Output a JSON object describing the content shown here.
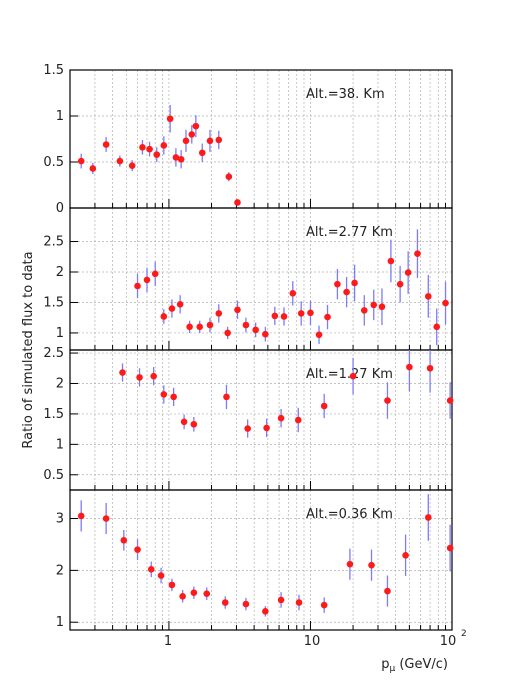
{
  "figure": {
    "ylabel": "Ratio of simulated flux to data",
    "xlabel": "pμ (GeV/c)",
    "xlabel_main": "p",
    "xlabel_sub": "μ",
    "xlabel_rest": " (GeV/c)",
    "x_tick_labels": [
      "1",
      "10",
      "10",
      "2"
    ],
    "x_tick_values": [
      1,
      10,
      100
    ]
  },
  "colors": {
    "marker": "#ff1a1a",
    "error_bar": "#7b7bff",
    "grid": "#b0b0b0",
    "axis": "#000000"
  },
  "chart_data": [
    {
      "type": "scatter",
      "annotation": "Alt.=38. Km",
      "xscale": "log",
      "xlim": [
        0.2,
        100
      ],
      "ylim": [
        0,
        1.5
      ],
      "yticks": [
        0,
        0.5,
        1,
        1.5
      ],
      "ytick_labels": [
        "0",
        "0.5",
        "1",
        "1.5"
      ],
      "grid": true,
      "points": [
        {
          "x": 0.24,
          "y": 0.51,
          "err": 0.08
        },
        {
          "x": 0.29,
          "y": 0.43,
          "err": 0.06
        },
        {
          "x": 0.36,
          "y": 0.69,
          "err": 0.08
        },
        {
          "x": 0.45,
          "y": 0.51,
          "err": 0.06
        },
        {
          "x": 0.55,
          "y": 0.46,
          "err": 0.06
        },
        {
          "x": 0.65,
          "y": 0.66,
          "err": 0.08
        },
        {
          "x": 0.73,
          "y": 0.64,
          "err": 0.08
        },
        {
          "x": 0.82,
          "y": 0.58,
          "err": 0.08
        },
        {
          "x": 0.92,
          "y": 0.68,
          "err": 0.1
        },
        {
          "x": 1.02,
          "y": 0.97,
          "err": 0.15
        },
        {
          "x": 1.12,
          "y": 0.55,
          "err": 0.1
        },
        {
          "x": 1.22,
          "y": 0.53,
          "err": 0.1
        },
        {
          "x": 1.32,
          "y": 0.73,
          "err": 0.12
        },
        {
          "x": 1.45,
          "y": 0.8,
          "err": 0.1
        },
        {
          "x": 1.55,
          "y": 0.89,
          "err": 0.12
        },
        {
          "x": 1.72,
          "y": 0.6,
          "err": 0.1
        },
        {
          "x": 1.95,
          "y": 0.73,
          "err": 0.12
        },
        {
          "x": 2.25,
          "y": 0.74,
          "err": 0.1
        },
        {
          "x": 2.65,
          "y": 0.34,
          "err": 0.05
        },
        {
          "x": 3.05,
          "y": 0.06,
          "err": 0.03
        }
      ]
    },
    {
      "type": "scatter",
      "annotation": "Alt.=2.77 Km",
      "xscale": "log",
      "xlim": [
        0.2,
        100
      ],
      "ylim": [
        0.72,
        3.05
      ],
      "yticks": [
        1,
        1.5,
        2,
        2.5
      ],
      "ytick_labels": [
        "1",
        "1.5",
        "2",
        "2.5"
      ],
      "grid": true,
      "points": [
        {
          "x": 0.6,
          "y": 1.77,
          "err": 0.2
        },
        {
          "x": 0.7,
          "y": 1.87,
          "err": 0.2
        },
        {
          "x": 0.8,
          "y": 1.97,
          "err": 0.2
        },
        {
          "x": 0.92,
          "y": 1.27,
          "err": 0.12
        },
        {
          "x": 1.05,
          "y": 1.4,
          "err": 0.15
        },
        {
          "x": 1.2,
          "y": 1.47,
          "err": 0.15
        },
        {
          "x": 1.4,
          "y": 1.1,
          "err": 0.1
        },
        {
          "x": 1.65,
          "y": 1.1,
          "err": 0.1
        },
        {
          "x": 1.95,
          "y": 1.13,
          "err": 0.12
        },
        {
          "x": 2.25,
          "y": 1.32,
          "err": 0.15
        },
        {
          "x": 2.6,
          "y": 1.0,
          "err": 0.1
        },
        {
          "x": 3.05,
          "y": 1.38,
          "err": 0.15
        },
        {
          "x": 3.5,
          "y": 1.13,
          "err": 0.12
        },
        {
          "x": 4.1,
          "y": 1.05,
          "err": 0.12
        },
        {
          "x": 4.8,
          "y": 0.98,
          "err": 0.12
        },
        {
          "x": 5.6,
          "y": 1.28,
          "err": 0.15
        },
        {
          "x": 6.5,
          "y": 1.27,
          "err": 0.15
        },
        {
          "x": 7.5,
          "y": 1.65,
          "err": 0.2
        },
        {
          "x": 8.6,
          "y": 1.32,
          "err": 0.2
        },
        {
          "x": 10.0,
          "y": 1.33,
          "err": 0.2
        },
        {
          "x": 11.5,
          "y": 0.97,
          "err": 0.15
        },
        {
          "x": 13.2,
          "y": 1.26,
          "err": 0.2
        },
        {
          "x": 15.5,
          "y": 1.8,
          "err": 0.25
        },
        {
          "x": 18.0,
          "y": 1.67,
          "err": 0.25
        },
        {
          "x": 20.5,
          "y": 1.82,
          "err": 0.3
        },
        {
          "x": 24.0,
          "y": 1.37,
          "err": 0.25
        },
        {
          "x": 28.0,
          "y": 1.46,
          "err": 0.25
        },
        {
          "x": 32.0,
          "y": 1.43,
          "err": 0.3
        },
        {
          "x": 37.0,
          "y": 2.18,
          "err": 0.35
        },
        {
          "x": 43.0,
          "y": 1.8,
          "err": 0.3
        },
        {
          "x": 49.0,
          "y": 1.99,
          "err": 0.35
        },
        {
          "x": 57.0,
          "y": 2.3,
          "err": 0.4
        },
        {
          "x": 68.0,
          "y": 1.6,
          "err": 0.35
        },
        {
          "x": 78.0,
          "y": 1.1,
          "err": 0.3
        },
        {
          "x": 90.0,
          "y": 1.49,
          "err": 0.35
        }
      ]
    },
    {
      "type": "scatter",
      "annotation": "Alt.=1.27 Km",
      "xscale": "log",
      "xlim": [
        0.2,
        100
      ],
      "ylim": [
        0.25,
        2.55
      ],
      "yticks": [
        0.5,
        1,
        1.5,
        2,
        2.5
      ],
      "ytick_labels": [
        "0.5",
        "1",
        "1.5",
        "2",
        "2.5"
      ],
      "grid": true,
      "points": [
        {
          "x": 0.47,
          "y": 2.18,
          "err": 0.15
        },
        {
          "x": 0.62,
          "y": 2.1,
          "err": 0.15
        },
        {
          "x": 0.78,
          "y": 2.12,
          "err": 0.15
        },
        {
          "x": 0.92,
          "y": 1.82,
          "err": 0.15
        },
        {
          "x": 1.08,
          "y": 1.78,
          "err": 0.15
        },
        {
          "x": 1.28,
          "y": 1.37,
          "err": 0.12
        },
        {
          "x": 1.5,
          "y": 1.33,
          "err": 0.12
        },
        {
          "x": 2.55,
          "y": 1.78,
          "err": 0.2
        },
        {
          "x": 3.6,
          "y": 1.26,
          "err": 0.15
        },
        {
          "x": 4.9,
          "y": 1.27,
          "err": 0.15
        },
        {
          "x": 6.2,
          "y": 1.43,
          "err": 0.15
        },
        {
          "x": 8.2,
          "y": 1.4,
          "err": 0.2
        },
        {
          "x": 12.5,
          "y": 1.63,
          "err": 0.2
        },
        {
          "x": 20.0,
          "y": 2.12,
          "err": 0.3
        },
        {
          "x": 35.0,
          "y": 1.72,
          "err": 0.3
        },
        {
          "x": 50.0,
          "y": 2.27,
          "err": 0.4
        },
        {
          "x": 70.0,
          "y": 2.25,
          "err": 0.4
        },
        {
          "x": 97.0,
          "y": 1.72,
          "err": 0.3
        }
      ]
    },
    {
      "type": "scatter",
      "annotation": "Alt.=0.36 Km",
      "xscale": "log",
      "xlim": [
        0.2,
        100
      ],
      "ylim": [
        0.85,
        3.55
      ],
      "yticks": [
        1,
        2,
        3
      ],
      "ytick_labels": [
        "1",
        "2",
        "3"
      ],
      "grid": true,
      "points": [
        {
          "x": 0.24,
          "y": 3.05,
          "err": 0.3
        },
        {
          "x": 0.36,
          "y": 3.0,
          "err": 0.3
        },
        {
          "x": 0.48,
          "y": 2.58,
          "err": 0.2
        },
        {
          "x": 0.6,
          "y": 2.4,
          "err": 0.2
        },
        {
          "x": 0.75,
          "y": 2.02,
          "err": 0.15
        },
        {
          "x": 0.88,
          "y": 1.9,
          "err": 0.15
        },
        {
          "x": 1.05,
          "y": 1.72,
          "err": 0.12
        },
        {
          "x": 1.25,
          "y": 1.5,
          "err": 0.12
        },
        {
          "x": 1.5,
          "y": 1.57,
          "err": 0.12
        },
        {
          "x": 1.85,
          "y": 1.55,
          "err": 0.12
        },
        {
          "x": 2.5,
          "y": 1.38,
          "err": 0.12
        },
        {
          "x": 3.5,
          "y": 1.35,
          "err": 0.12
        },
        {
          "x": 4.8,
          "y": 1.21,
          "err": 0.1
        },
        {
          "x": 6.2,
          "y": 1.43,
          "err": 0.15
        },
        {
          "x": 8.3,
          "y": 1.38,
          "err": 0.15
        },
        {
          "x": 12.5,
          "y": 1.33,
          "err": 0.15
        },
        {
          "x": 19.0,
          "y": 2.12,
          "err": 0.3
        },
        {
          "x": 27.0,
          "y": 2.1,
          "err": 0.3
        },
        {
          "x": 35.0,
          "y": 1.6,
          "err": 0.3
        },
        {
          "x": 47.0,
          "y": 2.29,
          "err": 0.4
        },
        {
          "x": 68.0,
          "y": 3.02,
          "err": 0.45
        },
        {
          "x": 97.0,
          "y": 2.43,
          "err": 0.45
        }
      ]
    }
  ]
}
